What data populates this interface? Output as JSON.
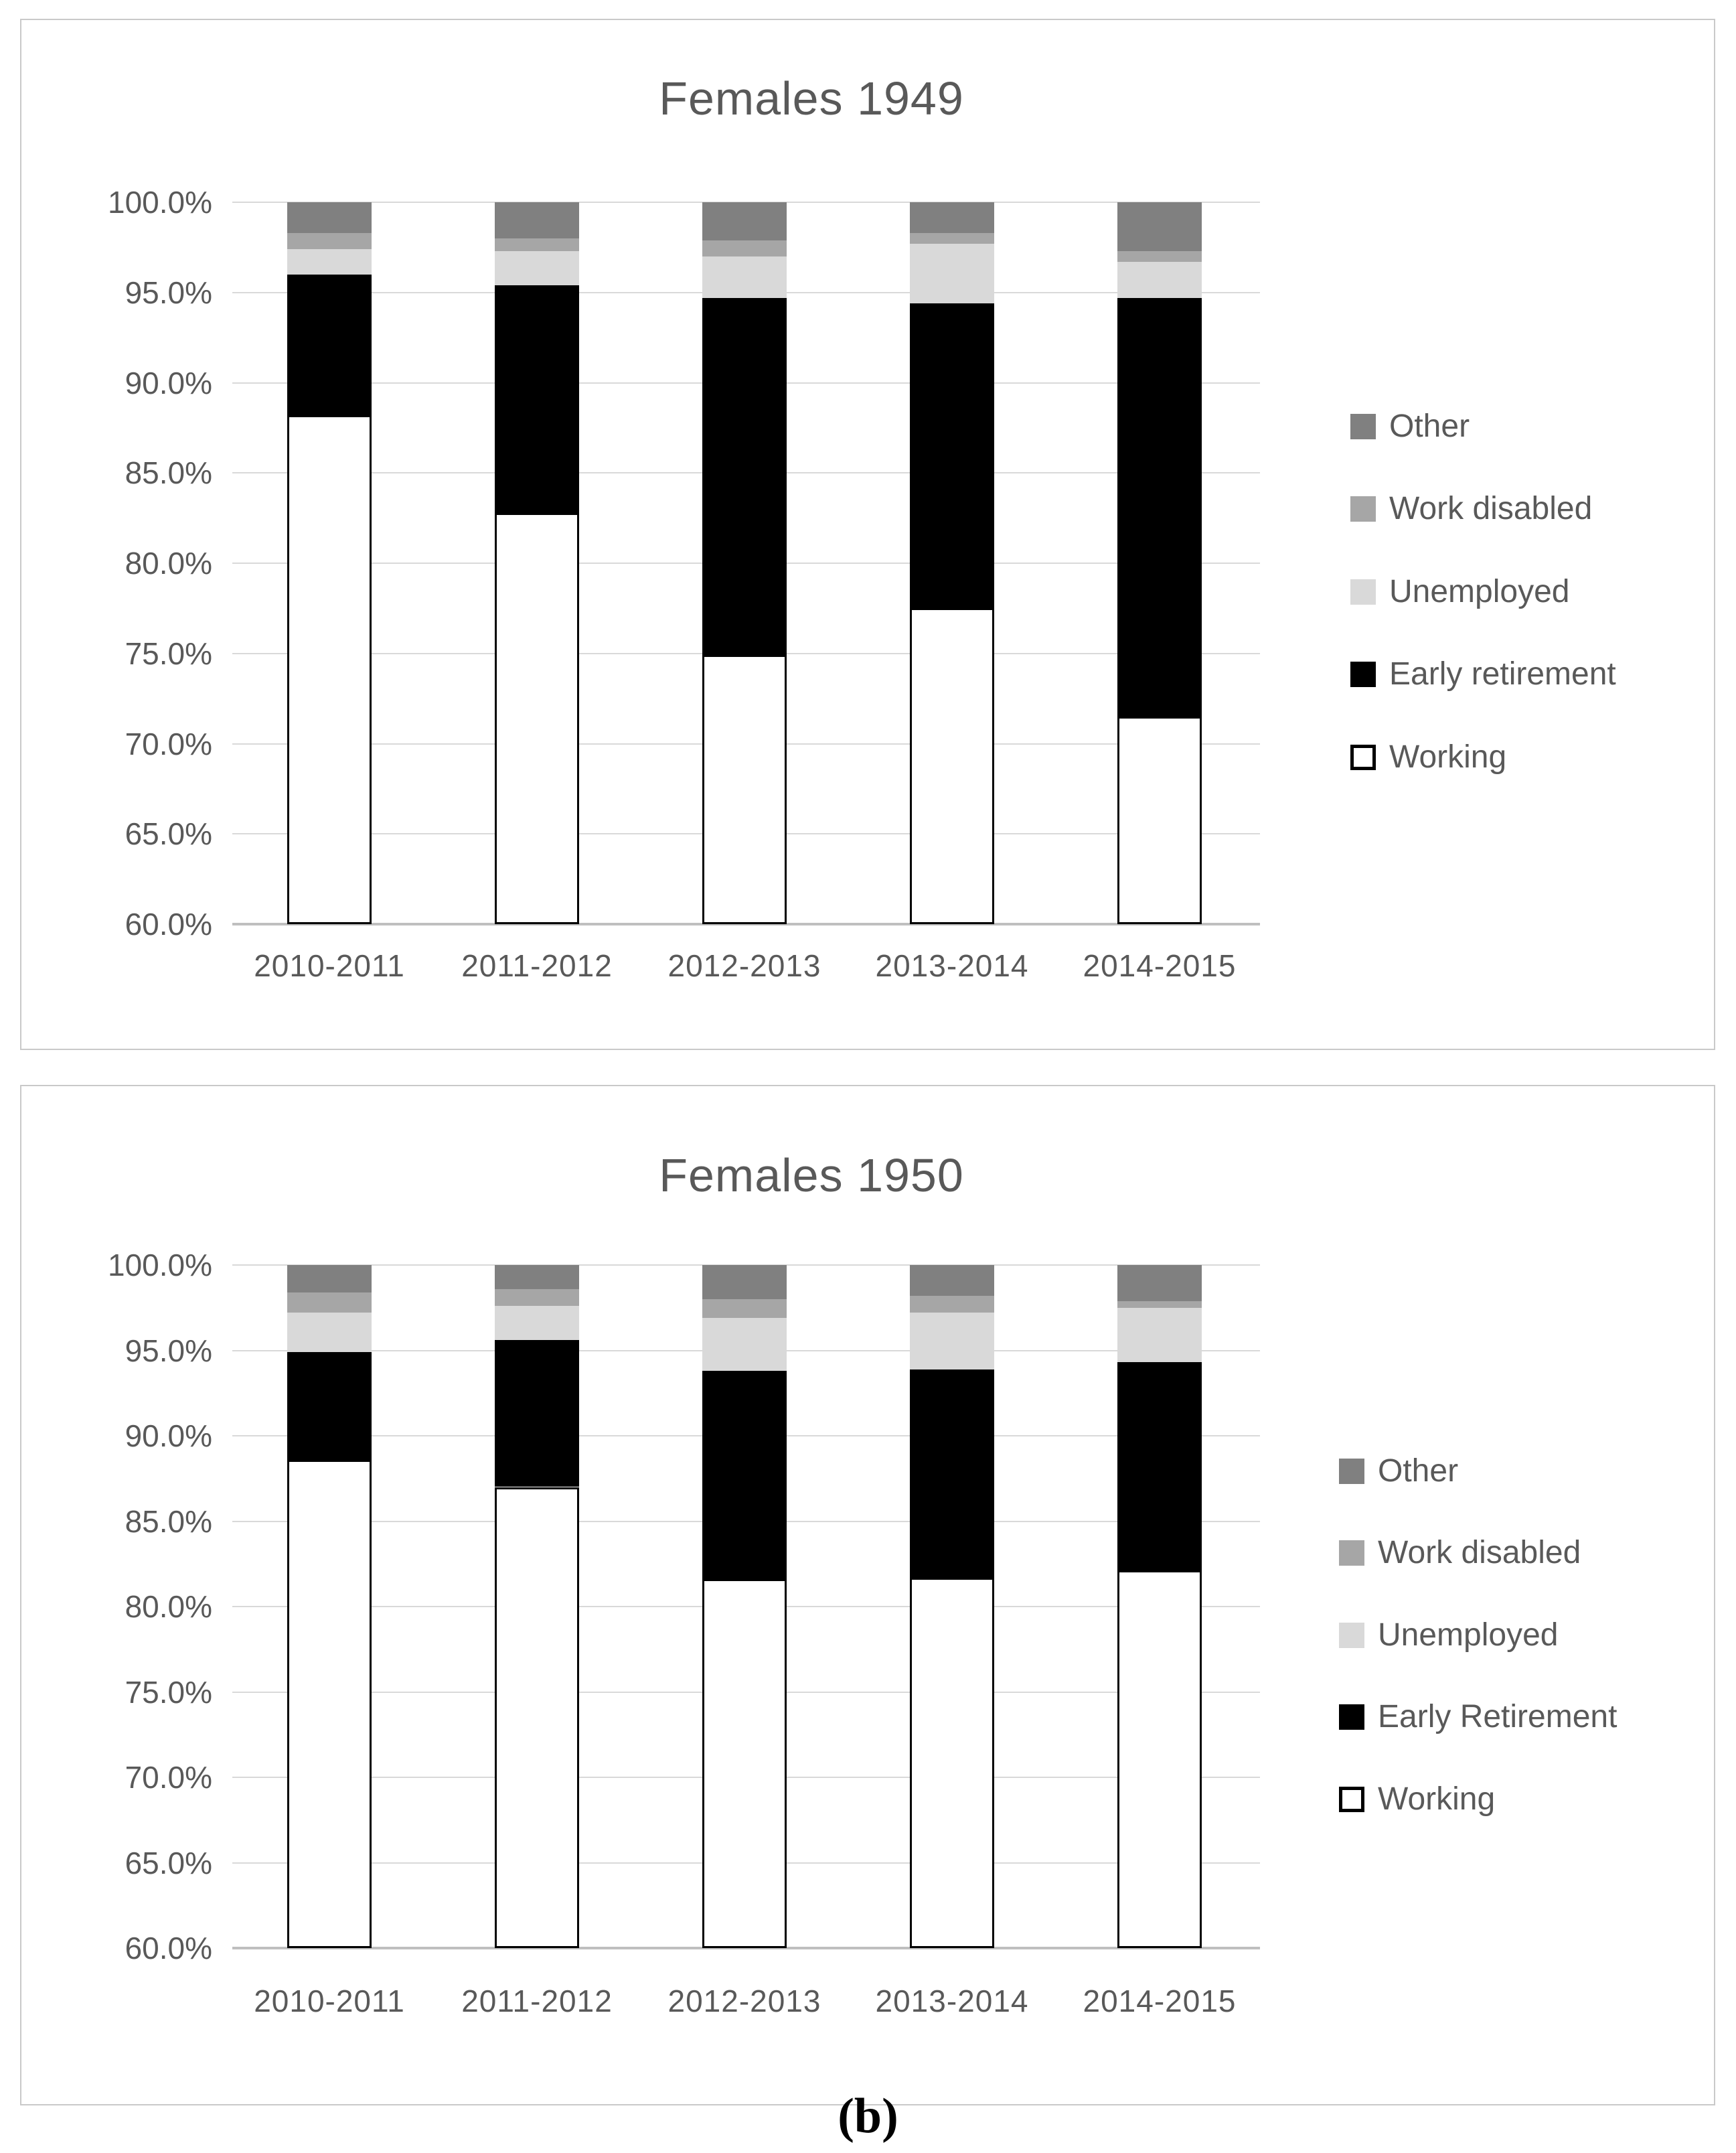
{
  "figure": {
    "caption": "(b)"
  },
  "colors": {
    "other": "#808080",
    "work_disabled": "#a6a6a6",
    "unemployed": "#d9d9d9",
    "early_retirement": "#000000",
    "working_fill": "#ffffff",
    "working_border": "#000000",
    "gridline": "#d9d9d9",
    "axis_line": "#bfbfbf",
    "text": "#595959"
  },
  "chart_data": [
    {
      "type": "bar",
      "variant": "100%-stacked-column",
      "title": "Females 1949",
      "categories": [
        "2010-2011",
        "2011-2012",
        "2012-2013",
        "2013-2014",
        "2014-2015"
      ],
      "series": [
        {
          "name": "Working",
          "color": "#ffffff",
          "border": "#000000",
          "values": [
            88.2,
            82.8,
            74.9,
            77.5,
            71.5
          ]
        },
        {
          "name": "Early retirement",
          "color": "#000000",
          "values": [
            7.8,
            12.6,
            19.8,
            16.9,
            23.2
          ]
        },
        {
          "name": "Unemployed",
          "color": "#d9d9d9",
          "values": [
            1.4,
            1.9,
            2.3,
            3.3,
            2.0
          ]
        },
        {
          "name": "Work disabled",
          "color": "#a6a6a6",
          "values": [
            0.9,
            0.7,
            0.9,
            0.6,
            0.6
          ]
        },
        {
          "name": "Other",
          "color": "#808080",
          "values": [
            1.7,
            2.0,
            2.1,
            1.7,
            2.7
          ]
        }
      ],
      "legend": [
        "Other",
        "Work disabled",
        "Unemployed",
        "Early retirement",
        "Working"
      ],
      "legend_position": "right",
      "grid": true,
      "ylim": [
        60,
        100
      ],
      "yticks": [
        "100.0%",
        "95.0%",
        "90.0%",
        "85.0%",
        "80.0%",
        "75.0%",
        "70.0%",
        "65.0%",
        "60.0%"
      ]
    },
    {
      "type": "bar",
      "variant": "100%-stacked-column",
      "title": "Females 1950",
      "categories": [
        "2010-2011",
        "2011-2012",
        "2012-2013",
        "2013-2014",
        "2014-2015"
      ],
      "series": [
        {
          "name": "Working",
          "color": "#ffffff",
          "border": "#000000",
          "values": [
            88.6,
            87.0,
            81.6,
            81.7,
            82.1
          ]
        },
        {
          "name": "Early Retirement",
          "color": "#000000",
          "values": [
            6.3,
            8.6,
            12.2,
            12.2,
            12.2
          ]
        },
        {
          "name": "Unemployed",
          "color": "#d9d9d9",
          "values": [
            2.3,
            2.0,
            3.1,
            3.3,
            3.2
          ]
        },
        {
          "name": "Work disabled",
          "color": "#a6a6a6",
          "values": [
            1.2,
            1.0,
            1.1,
            1.0,
            0.4
          ]
        },
        {
          "name": "Other",
          "color": "#808080",
          "values": [
            1.6,
            1.4,
            2.0,
            1.8,
            2.1
          ]
        }
      ],
      "legend": [
        "Other",
        "Work disabled",
        "Unemployed",
        "Early Retirement",
        "Working"
      ],
      "legend_position": "right",
      "grid": true,
      "ylim": [
        60,
        100
      ],
      "yticks": [
        "100.0%",
        "95.0%",
        "90.0%",
        "85.0%",
        "80.0%",
        "75.0%",
        "70.0%",
        "65.0%",
        "60.0%"
      ]
    }
  ]
}
